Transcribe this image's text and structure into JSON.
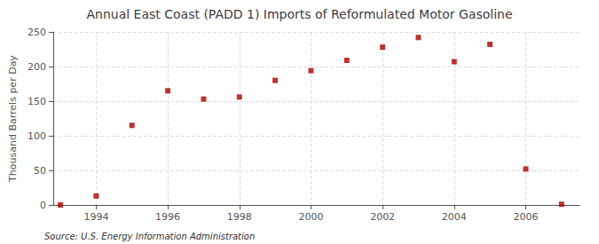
{
  "chart_data": {
    "type": "scatter",
    "title": "Annual East Coast (PADD 1) Imports of Reformulated Motor Gasoline",
    "ylabel": "Thousand Barrels per Day",
    "annotation": "Source: U.S. Energy Information Administration",
    "x": [
      1993,
      1994,
      1995,
      1996,
      1997,
      1998,
      1999,
      2000,
      2001,
      2002,
      2003,
      2004,
      2005,
      2006,
      2007
    ],
    "values": [
      0,
      13,
      115,
      165,
      153,
      156,
      180,
      194,
      209,
      228,
      242,
      207,
      232,
      52,
      1
    ],
    "color": "#aa0000",
    "marker": "square",
    "xlim": [
      1992.8,
      2007.5
    ],
    "ylim": [
      0,
      250
    ],
    "xticks": [
      1994,
      1996,
      1998,
      2000,
      2002,
      2004,
      2006
    ],
    "yticks": [
      0,
      50,
      100,
      150,
      200,
      250
    ],
    "grid": true
  }
}
